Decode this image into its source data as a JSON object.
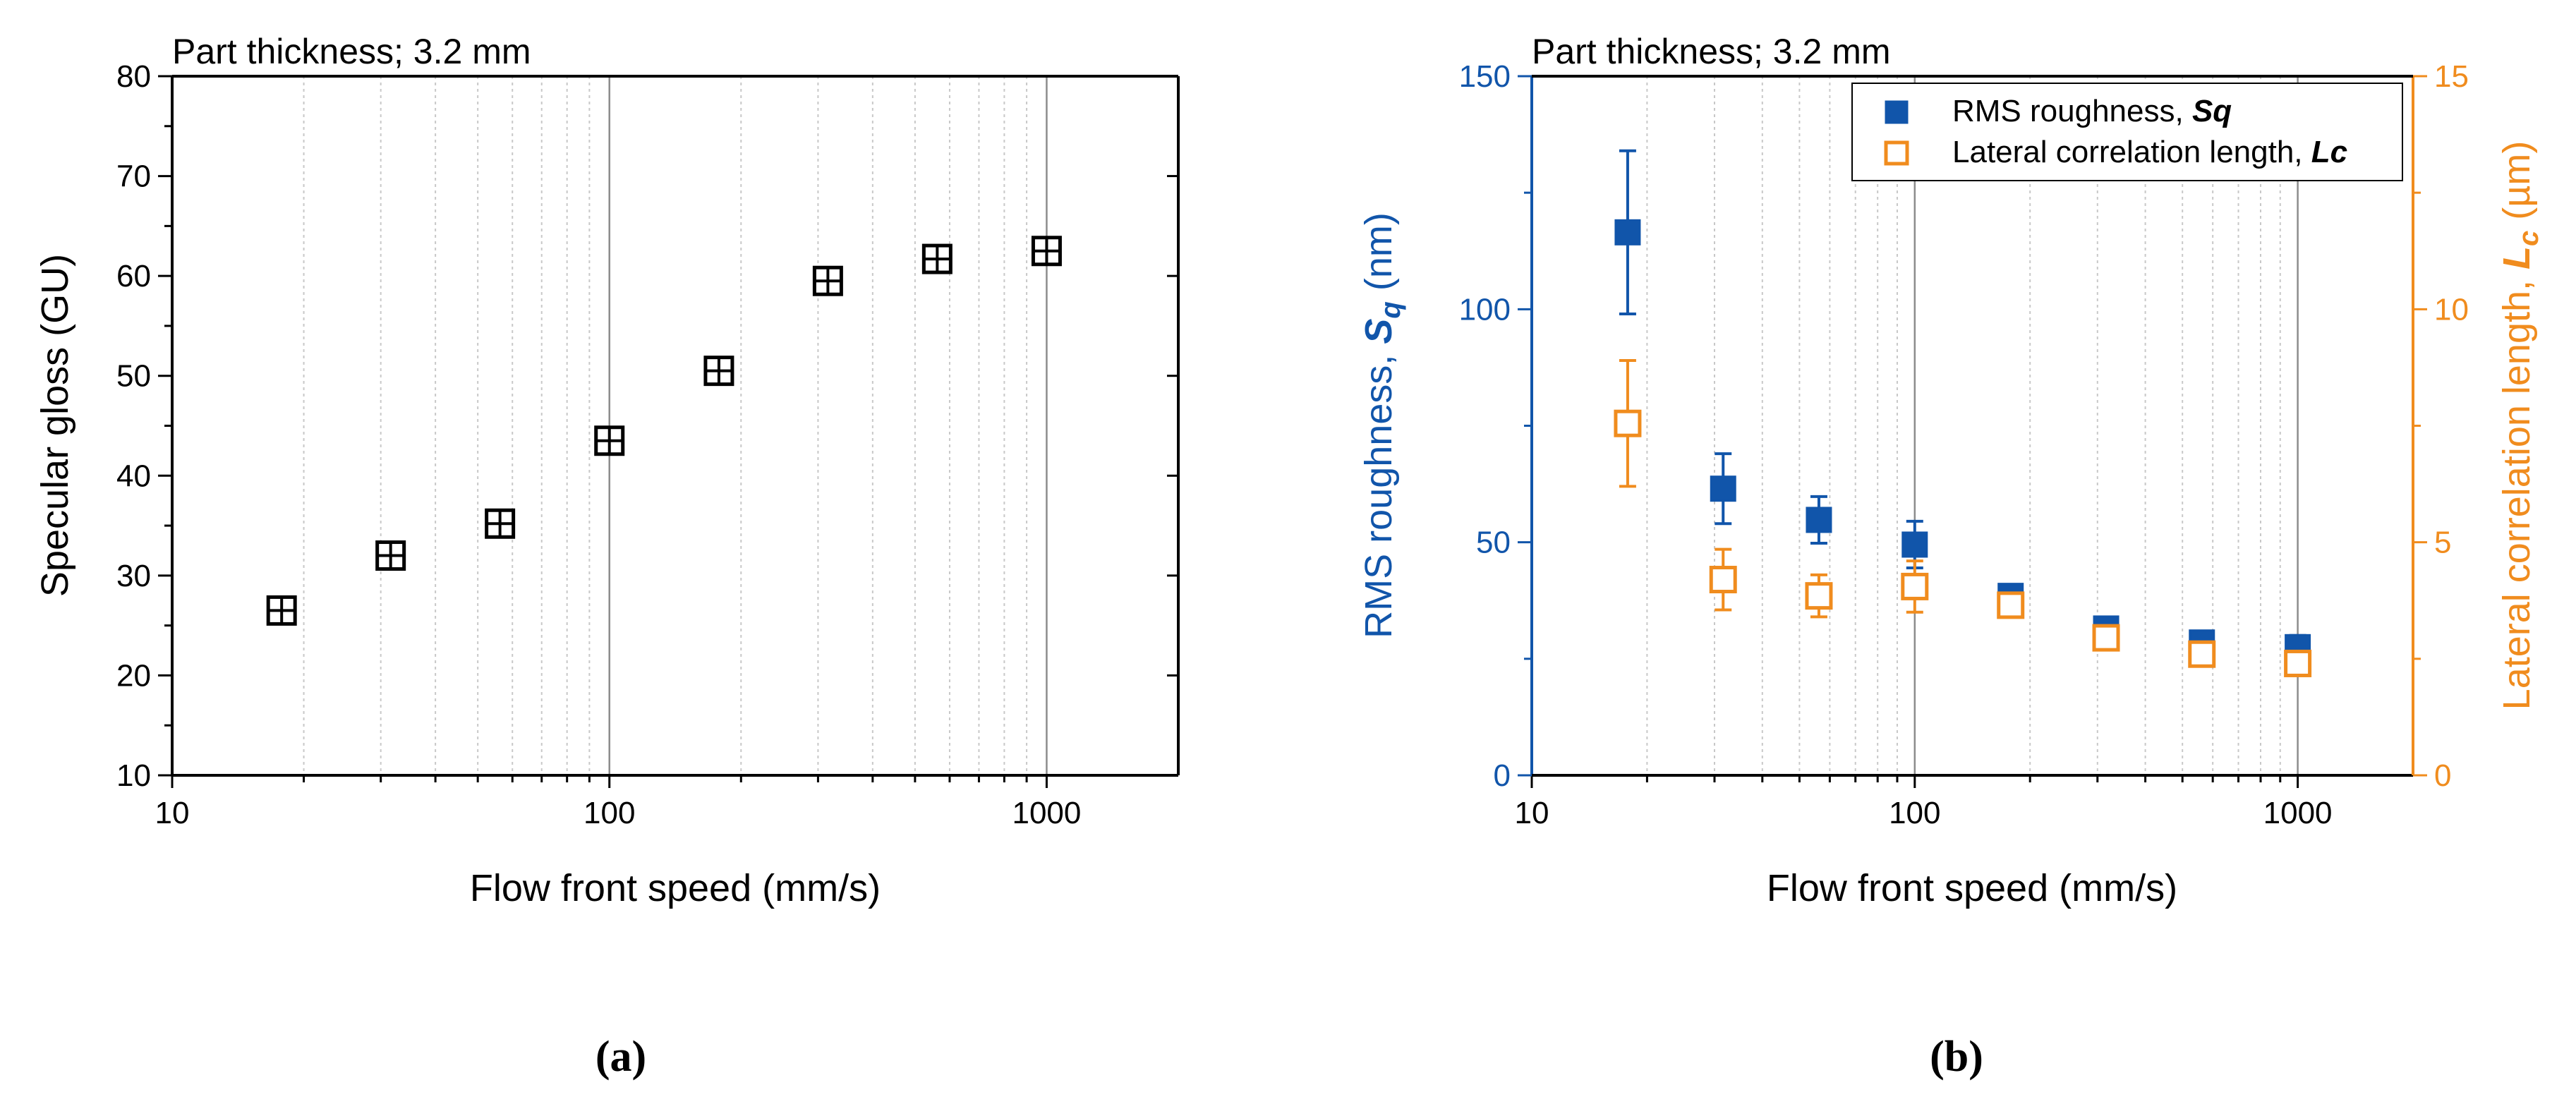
{
  "colors": {
    "axis": "#000000",
    "grid_major": "#8c8c8c",
    "grid_minor": "#c8c8c8",
    "sq": "#1155aa",
    "lc": "#f08c1e"
  },
  "chart_data": [
    {
      "type": "scatter",
      "panel_label": "(a)",
      "title": "Part thickness; 3.2 mm",
      "xlabel": "Flow front speed (mm/s)",
      "ylabel": "Specular gloss (GU)",
      "x_scale": "log",
      "xlim": [
        10,
        2000
      ],
      "ylim": [
        10,
        80
      ],
      "x_ticks": [
        10,
        100,
        1000
      ],
      "x_tick_labels": [
        "10",
        "100",
        "1000"
      ],
      "y_ticks": [
        10,
        20,
        30,
        40,
        50,
        60,
        70,
        80
      ],
      "y_tick_labels": [
        "10",
        "20",
        "30",
        "40",
        "50",
        "60",
        "70",
        "80"
      ],
      "grid": "vertical",
      "series": [
        {
          "name": "Specular gloss",
          "marker": "square-cross",
          "x": [
            17.8,
            31.6,
            56.2,
            100,
            178,
            316,
            562,
            1000
          ],
          "y": [
            26.5,
            32.0,
            35.2,
            43.5,
            50.5,
            59.5,
            61.7,
            62.5
          ]
        }
      ]
    },
    {
      "type": "scatter",
      "panel_label": "(b)",
      "title": "Part thickness; 3.2 mm",
      "xlabel": "Flow front speed (mm/s)",
      "ylabel_main": "RMS roughness, ",
      "ylabel_symbol": "S",
      "ylabel_subscript": "q",
      "ylabel_unit": " (nm)",
      "y2label_main": "Lateral correlation length, ",
      "y2label_symbol": "L",
      "y2label_subscript": "c",
      "y2label_unit": " (µm)",
      "x_scale": "log",
      "xlim": [
        10,
        2000
      ],
      "ylim": [
        0,
        150
      ],
      "y2lim": [
        0,
        15
      ],
      "x_ticks": [
        10,
        100,
        1000
      ],
      "x_tick_labels": [
        "10",
        "100",
        "1000"
      ],
      "y_ticks": [
        0,
        50,
        100,
        150
      ],
      "y_tick_labels": [
        "0",
        "50",
        "100",
        "150"
      ],
      "y2_ticks": [
        0,
        5,
        10,
        15
      ],
      "y2_tick_labels": [
        "0",
        "5",
        "10",
        "15"
      ],
      "grid": "vertical",
      "legend_position": "top-right",
      "series": [
        {
          "name": "RMS roughness, ",
          "name_symbol": "Sq",
          "axis": "left",
          "marker": "filled-square",
          "x": [
            17.8,
            31.6,
            56.2,
            100,
            178,
            316,
            562,
            1000
          ],
          "y": [
            116.5,
            61.5,
            54.8,
            49.5,
            38.5,
            31.5,
            28.5,
            27.5
          ],
          "err": [
            17.5,
            7.5,
            5.0,
            5.0,
            1.0,
            1.0,
            1.5,
            2.5
          ]
        },
        {
          "name": "Lateral correlation length, ",
          "name_symbol": "Lc",
          "axis": "right",
          "marker": "open-square",
          "x": [
            17.8,
            31.6,
            56.2,
            100,
            178,
            316,
            562,
            1000
          ],
          "y": [
            7.55,
            4.2,
            3.85,
            4.05,
            3.65,
            2.95,
            2.6,
            2.4
          ],
          "err": [
            1.35,
            0.65,
            0.45,
            0.55,
            0.2,
            0.15,
            0.2,
            0.2
          ]
        }
      ]
    }
  ]
}
